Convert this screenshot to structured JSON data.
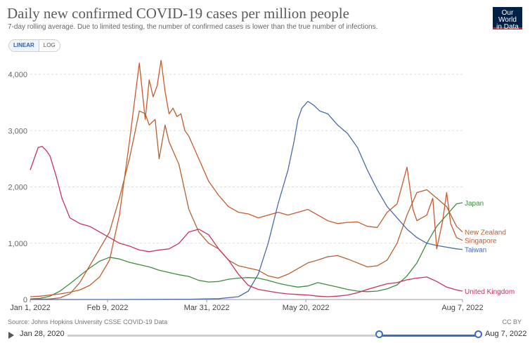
{
  "header": {
    "title": "Daily new confirmed COVID-19 cases per million people",
    "subtitle": "7-day rolling average. Due to limited testing, the number of confirmed cases is lower than the true number of infections.",
    "logo_line1": "Our World",
    "logo_line2": "in Data"
  },
  "controls": {
    "linear_label": "LINEAR",
    "log_label": "LOG"
  },
  "footer": {
    "source": "Source: Johns Hopkins University CSSE COVID-19 Data",
    "license": "CC BY",
    "timeline_start": "Jan 28, 2020",
    "timeline_end": "Aug 7, 2022",
    "timeline_range_start_fraction": 0.76,
    "timeline_range_end_fraction": 1.0
  },
  "colors": {
    "japan": "#3f8c3f",
    "singapore": "#c85a2f",
    "new_zealand": "#b5622f",
    "taiwan": "#4a6aa8",
    "united_kingdom": "#c8335a",
    "grid": "#dddddd",
    "axis_text": "#666666"
  },
  "chart_data": {
    "type": "line",
    "title": "Daily new confirmed COVID-19 cases per million people",
    "xlabel": "",
    "ylabel": "",
    "ylim": [
      0,
      4000
    ],
    "xlim_days": [
      0,
      218
    ],
    "y_ticks": [
      0,
      1000,
      2000,
      3000,
      4000
    ],
    "y_tick_labels": [
      "0",
      "1,000",
      "2,000",
      "3,000",
      "4,000"
    ],
    "x_ticks": [
      {
        "day": 0,
        "label": "Jan 1, 2022"
      },
      {
        "day": 39,
        "label": "Feb 9, 2022"
      },
      {
        "day": 89,
        "label": "Mar 31, 2022"
      },
      {
        "day": 139,
        "label": "May 20, 2022"
      },
      {
        "day": 218,
        "label": "Aug 7, 2022"
      }
    ],
    "x_unit": "days since Jan 1, 2022",
    "series": [
      {
        "name": "Japan",
        "colorKey": "japan",
        "x": [
          0,
          5,
          10,
          15,
          20,
          25,
          30,
          35,
          40,
          45,
          50,
          55,
          60,
          65,
          70,
          75,
          80,
          85,
          90,
          95,
          100,
          105,
          110,
          115,
          120,
          125,
          130,
          135,
          140,
          145,
          150,
          155,
          160,
          165,
          170,
          175,
          180,
          185,
          190,
          195,
          200,
          205,
          210,
          215,
          218
        ],
        "values": [
          10,
          20,
          60,
          150,
          280,
          420,
          560,
          680,
          750,
          720,
          660,
          620,
          580,
          520,
          480,
          440,
          410,
          340,
          310,
          320,
          360,
          380,
          390,
          380,
          340,
          290,
          250,
          220,
          240,
          300,
          260,
          220,
          180,
          150,
          140,
          150,
          190,
          260,
          420,
          650,
          1000,
          1300,
          1500,
          1700,
          1720
        ]
      },
      {
        "name": "Singapore",
        "colorKey": "singapore",
        "x": [
          0,
          5,
          10,
          15,
          20,
          25,
          30,
          35,
          40,
          45,
          50,
          55,
          58,
          60,
          62,
          64,
          66,
          68,
          70,
          72,
          74,
          76,
          78,
          80,
          85,
          90,
          95,
          100,
          105,
          110,
          115,
          120,
          125,
          130,
          135,
          140,
          145,
          150,
          155,
          160,
          165,
          170,
          175,
          180,
          185,
          190,
          193,
          195,
          200,
          203,
          205,
          208,
          210,
          212,
          215,
          218
        ],
        "values": [
          50,
          60,
          80,
          100,
          130,
          170,
          250,
          400,
          700,
          1500,
          2800,
          4200,
          3200,
          3900,
          3600,
          3800,
          4250,
          3700,
          3300,
          3400,
          3250,
          3300,
          3000,
          2900,
          2500,
          2100,
          1850,
          1650,
          1550,
          1520,
          1450,
          1500,
          1550,
          1500,
          1550,
          1600,
          1500,
          1400,
          1350,
          1370,
          1380,
          1300,
          1280,
          1550,
          1700,
          2350,
          1600,
          1400,
          1500,
          1800,
          900,
          1400,
          1900,
          1350,
          1100,
          1050
        ]
      },
      {
        "name": "New Zealand",
        "colorKey": "new_zealand",
        "x": [
          0,
          5,
          10,
          15,
          20,
          25,
          30,
          35,
          40,
          45,
          50,
          53,
          55,
          58,
          60,
          63,
          65,
          68,
          70,
          75,
          80,
          85,
          90,
          95,
          100,
          105,
          110,
          115,
          120,
          125,
          130,
          135,
          140,
          145,
          150,
          155,
          160,
          165,
          170,
          175,
          180,
          185,
          190,
          195,
          200,
          205,
          210,
          215,
          218
        ],
        "values": [
          5,
          5,
          10,
          30,
          100,
          300,
          600,
          900,
          1200,
          1800,
          2500,
          3000,
          3350,
          3300,
          3100,
          3200,
          2500,
          3100,
          2800,
          2400,
          1600,
          1200,
          1000,
          900,
          700,
          600,
          560,
          520,
          420,
          380,
          450,
          550,
          650,
          700,
          760,
          780,
          720,
          650,
          580,
          600,
          700,
          1000,
          1500,
          1900,
          1950,
          1800,
          1650,
          1300,
          1200
        ]
      },
      {
        "name": "Taiwan",
        "colorKey": "taiwan",
        "x": [
          0,
          20,
          40,
          60,
          80,
          95,
          105,
          110,
          115,
          120,
          125,
          130,
          133,
          135,
          137,
          140,
          143,
          146,
          150,
          155,
          160,
          165,
          170,
          175,
          180,
          185,
          190,
          195,
          200,
          205,
          210,
          215,
          218
        ],
        "values": [
          0,
          0,
          0,
          2,
          5,
          15,
          50,
          150,
          450,
          1000,
          1700,
          2300,
          2800,
          3200,
          3400,
          3520,
          3450,
          3350,
          3300,
          3100,
          2950,
          2700,
          2300,
          1950,
          1650,
          1450,
          1250,
          1100,
          1000,
          960,
          930,
          900,
          890
        ]
      },
      {
        "name": "United Kingdom",
        "colorKey": "united_kingdom",
        "x": [
          0,
          2,
          4,
          6,
          8,
          10,
          13,
          16,
          20,
          25,
          30,
          35,
          40,
          45,
          50,
          55,
          60,
          65,
          70,
          75,
          80,
          85,
          90,
          95,
          100,
          105,
          110,
          115,
          120,
          125,
          130,
          135,
          140,
          145,
          150,
          155,
          160,
          165,
          170,
          175,
          180,
          185,
          190,
          195,
          200,
          205,
          210,
          215,
          218
        ],
        "values": [
          2300,
          2500,
          2700,
          2720,
          2650,
          2550,
          2200,
          1800,
          1450,
          1350,
          1300,
          1200,
          1100,
          1000,
          950,
          880,
          850,
          880,
          900,
          1000,
          1200,
          1250,
          1150,
          900,
          700,
          450,
          250,
          180,
          150,
          120,
          100,
          90,
          80,
          60,
          50,
          60,
          80,
          120,
          180,
          230,
          280,
          300,
          350,
          380,
          400,
          320,
          220,
          170,
          150
        ]
      }
    ],
    "labels": [
      {
        "series": "Japan",
        "text": "Japan"
      },
      {
        "series": "Singapore",
        "text": "Singapore"
      },
      {
        "series": "New Zealand",
        "text": "New Zealand"
      },
      {
        "series": "Taiwan",
        "text": "Taiwan"
      },
      {
        "series": "United Kingdom",
        "text": "United Kingdom"
      }
    ]
  }
}
